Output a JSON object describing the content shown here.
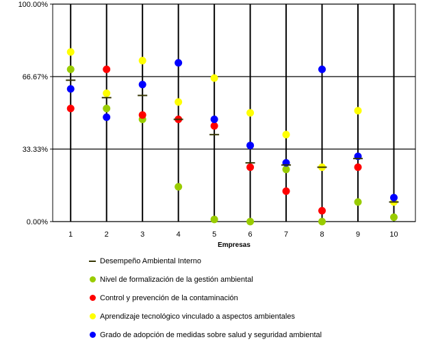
{
  "chart_data": {
    "type": "scatter",
    "title": "",
    "xlabel": "Empresas",
    "ylabel": "",
    "categories": [
      "1",
      "2",
      "3",
      "4",
      "5",
      "6",
      "7",
      "8",
      "9",
      "10"
    ],
    "y_tick_labels": [
      "0.00%",
      "33.33%",
      "66.67%",
      "100.00%"
    ],
    "y_ticks": [
      0,
      33.33,
      66.67,
      100
    ],
    "ylim": [
      0,
      100
    ],
    "grid": true,
    "legend_position": "bottom",
    "series": [
      {
        "name": "Desempeño Ambiental Interno",
        "marker": "dash",
        "color": "#333300",
        "values": [
          65,
          57,
          58,
          47,
          40,
          27,
          26,
          25,
          29,
          9
        ]
      },
      {
        "name": "Nivel de formalización de la gestión ambiental",
        "marker": "circle",
        "color": "#99cc00",
        "values": [
          70,
          52,
          47,
          16,
          1,
          0,
          24,
          0,
          9,
          2
        ]
      },
      {
        "name": "Control y prevención de la contaminación",
        "marker": "circle",
        "color": "#ff0000",
        "values": [
          52,
          70,
          49,
          47,
          44,
          25,
          14,
          5,
          25,
          null
        ]
      },
      {
        "name": "Aprendizaje tecnológico vinculado a aspectos ambientales",
        "marker": "circle",
        "color": "#ffff00",
        "values": [
          78,
          59,
          74,
          55,
          66,
          50,
          40,
          25,
          51,
          9
        ]
      },
      {
        "name": "Grado de adopción de medidas sobre salud y seguridad ambiental",
        "marker": "circle",
        "color": "#0000ff",
        "values": [
          61,
          48,
          63,
          73,
          47,
          35,
          27,
          70,
          30,
          11
        ]
      }
    ]
  }
}
